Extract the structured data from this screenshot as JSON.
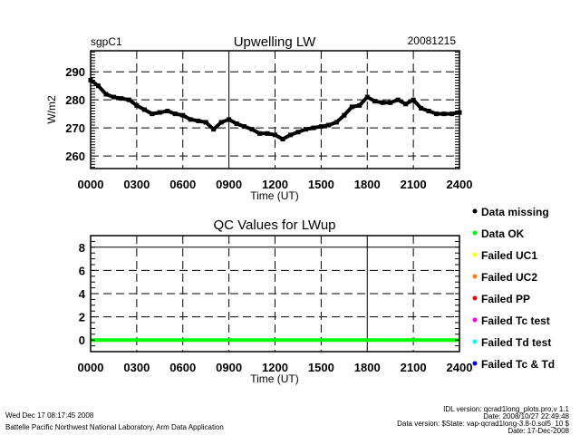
{
  "chart_data": [
    {
      "type": "line",
      "title": "Upwelling LW",
      "site": "sgpC1",
      "date": "20081215",
      "xlabel": "Time (UT)",
      "ylabel": "W/m2",
      "xlim": [
        0,
        24
      ],
      "ylim": [
        255.5,
        297.5
      ],
      "x_tick_labels": [
        "0000",
        "0300",
        "0600",
        "0900",
        "1200",
        "1500",
        "1800",
        "2100",
        "2400"
      ],
      "y_ticks": [
        260,
        270,
        280,
        290
      ],
      "y_tick_labels": [
        "260",
        "270",
        "280",
        "290"
      ],
      "grid": true,
      "series": [
        {
          "name": "LWup",
          "color": "#000000",
          "x": [
            0,
            0.5,
            1,
            1.5,
            2,
            2.5,
            3,
            3.5,
            4,
            4.5,
            5,
            5.5,
            6,
            6.5,
            7,
            7.5,
            8,
            8.5,
            9,
            9.5,
            10,
            10.5,
            11,
            11.5,
            12,
            12.5,
            13,
            13.5,
            14,
            14.5,
            15,
            15.5,
            16,
            16.5,
            17,
            17.5,
            18,
            18.5,
            19,
            19.5,
            20,
            20.5,
            21,
            21.5,
            22,
            22.5,
            23,
            23.5,
            24
          ],
          "y": [
            287,
            285,
            282,
            281,
            280.5,
            280,
            278,
            276.5,
            275,
            275.5,
            276,
            275,
            274.5,
            273,
            272.5,
            272,
            269.5,
            272,
            273,
            271.5,
            270.5,
            269.5,
            268,
            268,
            267.5,
            266,
            267.5,
            268.5,
            269.5,
            270,
            270.5,
            271,
            272,
            274.5,
            277.5,
            278,
            281,
            279.5,
            279,
            279,
            280,
            278.5,
            280,
            277,
            276,
            275,
            275,
            275,
            275.5
          ]
        }
      ]
    },
    {
      "type": "line",
      "title": "QC Values for LWup",
      "xlabel": "Time (UT)",
      "ylabel": "",
      "xlim": [
        0,
        24
      ],
      "ylim": [
        -1,
        9
      ],
      "x_tick_labels": [
        "0000",
        "0300",
        "0600",
        "0900",
        "1200",
        "1500",
        "1800",
        "2100",
        "2400"
      ],
      "y_ticks": [
        0,
        2,
        4,
        6,
        8
      ],
      "y_tick_labels": [
        "0",
        "2",
        "4",
        "6",
        "8"
      ],
      "grid": true,
      "series": [
        {
          "name": "Data OK",
          "color": "#00ff00",
          "x": [
            0,
            24
          ],
          "y": [
            0,
            0
          ]
        }
      ],
      "legend": [
        {
          "label": "Data missing",
          "color": "#000000"
        },
        {
          "label": "Data OK",
          "color": "#00ff00"
        },
        {
          "label": "Failed UC1",
          "color": "#ffff00"
        },
        {
          "label": "Failed UC2",
          "color": "#ff8000"
        },
        {
          "label": "Failed PP",
          "color": "#ff0000"
        },
        {
          "label": "Failed Tc test",
          "color": "#ff00ff"
        },
        {
          "label": "Failed Td test",
          "color": "#00ffff"
        },
        {
          "label": "Failed Tc & Td",
          "color": "#0000ff"
        }
      ],
      "legend_placement": "right"
    }
  ],
  "footer": {
    "timestamp": "Wed Dec 17 08:17:45 2008",
    "organization": "Battelle Pacific Northwest National Laboratory, Arm Data Application",
    "idl_version": "IDL version: qcrad1long_plots.pro,v 1.1",
    "idl_date": "Date: 2008/10/27 22:49:48",
    "data_version": "Data version: $State: vap-qcrad1long-3.8-0.sol5_10 $",
    "data_date": "Date: 17-Dec-2008"
  }
}
